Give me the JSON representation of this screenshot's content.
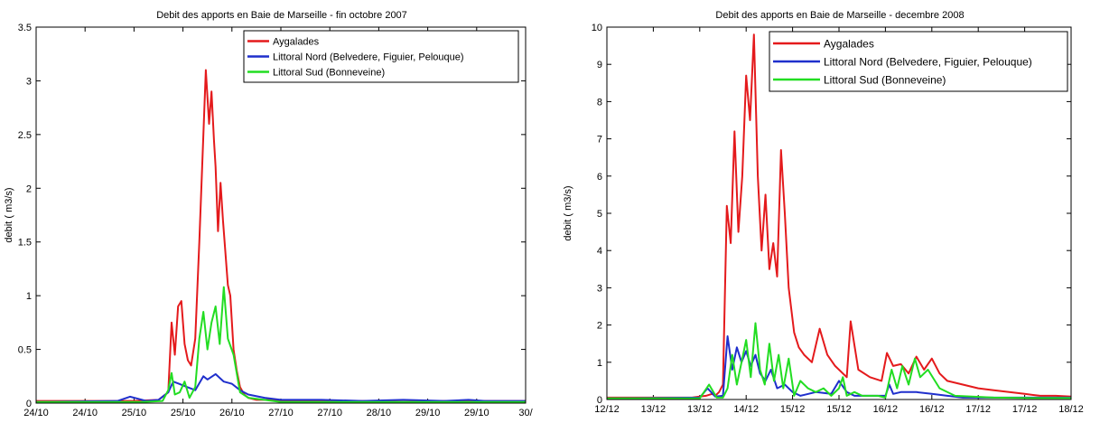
{
  "charts": [
    {
      "id": "left",
      "chart_data": {
        "type": "line",
        "title": "Debit des apports en Baie de Marseille - fin octobre 2007",
        "xlabel": "",
        "ylabel": "debit ( m3/s)",
        "xlim": [
          0,
          6
        ],
        "ylim": [
          0,
          3.5
        ],
        "yticks": [
          0,
          0.5,
          1,
          1.5,
          2,
          2.5,
          3,
          3.5
        ],
        "ytick_labels": [
          "0",
          "0.5",
          "1",
          "1.5",
          "2",
          "2.5",
          "3",
          "3.5"
        ],
        "xticks": [
          0,
          0.6,
          1.2,
          1.8,
          2.4,
          3.0,
          3.6,
          4.2,
          4.8,
          5.4,
          6.0
        ],
        "xtick_labels": [
          "24/10",
          "24/10",
          "25/10",
          "25/10",
          "26/10",
          "27/10",
          "27/10",
          "28/10",
          "29/10",
          "29/10",
          "30/"
        ],
        "legend_position": "top-right",
        "series": [
          {
            "name": "Aygalades",
            "color": "#e41a1c",
            "x": [
              0,
              1.2,
              1.5,
              1.62,
              1.66,
              1.7,
              1.74,
              1.78,
              1.82,
              1.86,
              1.9,
              1.95,
              2.0,
              2.05,
              2.08,
              2.12,
              2.15,
              2.18,
              2.2,
              2.23,
              2.26,
              2.29,
              2.32,
              2.35,
              2.38,
              2.42,
              2.46,
              2.5,
              2.55,
              2.6,
              2.7,
              2.85,
              3.0,
              3.5,
              4.0,
              4.5,
              5.0,
              5.5,
              6.0
            ],
            "y": [
              0.02,
              0.02,
              0.03,
              0.1,
              0.75,
              0.45,
              0.9,
              0.95,
              0.55,
              0.4,
              0.35,
              0.6,
              1.5,
              2.5,
              3.1,
              2.6,
              2.9,
              2.45,
              2.2,
              1.6,
              2.05,
              1.7,
              1.4,
              1.1,
              1.0,
              0.5,
              0.3,
              0.15,
              0.08,
              0.05,
              0.03,
              0.03,
              0.02,
              0.02,
              0.02,
              0.01,
              0.02,
              0.02,
              0.02
            ]
          },
          {
            "name": "Littoral Nord (Belvedere, Figuier, Pelouque)",
            "color": "#1f2fcc",
            "x": [
              0,
              1.0,
              1.15,
              1.25,
              1.35,
              1.5,
              1.62,
              1.68,
              1.75,
              1.85,
              1.95,
              2.05,
              2.1,
              2.2,
              2.3,
              2.4,
              2.5,
              2.6,
              2.8,
              3.0,
              3.5,
              4.0,
              4.5,
              5.0,
              5.3,
              5.5,
              6.0
            ],
            "y": [
              0.01,
              0.02,
              0.06,
              0.04,
              0.02,
              0.03,
              0.1,
              0.2,
              0.18,
              0.15,
              0.12,
              0.25,
              0.22,
              0.27,
              0.2,
              0.18,
              0.12,
              0.08,
              0.05,
              0.03,
              0.03,
              0.02,
              0.03,
              0.02,
              0.03,
              0.02,
              0.02
            ]
          },
          {
            "name": "Littoral Sud (Bonneveine)",
            "color": "#22dd22",
            "x": [
              0,
              1.3,
              1.55,
              1.62,
              1.66,
              1.7,
              1.76,
              1.82,
              1.88,
              1.95,
              2.0,
              2.05,
              2.1,
              2.15,
              2.2,
              2.25,
              2.3,
              2.35,
              2.42,
              2.5,
              2.6,
              2.8,
              3.0,
              3.5,
              4.0,
              5.0,
              6.0
            ],
            "y": [
              0.01,
              0.01,
              0.02,
              0.12,
              0.28,
              0.08,
              0.1,
              0.2,
              0.05,
              0.15,
              0.6,
              0.85,
              0.5,
              0.75,
              0.9,
              0.55,
              1.08,
              0.6,
              0.45,
              0.1,
              0.05,
              0.03,
              0.01,
              0.01,
              0.01,
              0.01,
              0.01
            ]
          }
        ]
      }
    },
    {
      "id": "right",
      "chart_data": {
        "type": "line",
        "title": "Debit des apports en Baie de Marseille - decembre 2008",
        "xlabel": "",
        "ylabel": "debit ( m3/s)",
        "xlim": [
          0,
          6
        ],
        "ylim": [
          0,
          10
        ],
        "yticks": [
          0,
          1,
          2,
          3,
          4,
          5,
          6,
          7,
          8,
          9,
          10
        ],
        "ytick_labels": [
          "0",
          "1",
          "2",
          "3",
          "4",
          "5",
          "6",
          "7",
          "8",
          "9",
          "10"
        ],
        "xticks": [
          0,
          0.5,
          1,
          1.5,
          2,
          2.5,
          3,
          3.5,
          4,
          4.5,
          5,
          5.5,
          6
        ],
        "xtick_labels": [
          "12/12",
          "13/12",
          "13/12",
          "14/12",
          "15/12",
          "15/12",
          "16/12",
          "16/12",
          "17/12",
          "17/12",
          "18/12"
        ],
        "xtick_positions": [
          0,
          0.6,
          1.2,
          1.8,
          2.4,
          3.0,
          3.6,
          4.2,
          4.8,
          5.4,
          6.0
        ],
        "legend_position": "top-right",
        "series": [
          {
            "name": "Aygalades",
            "color": "#e41a1c",
            "x": [
              0,
              1.1,
              1.28,
              1.36,
              1.4,
              1.45,
              1.5,
              1.55,
              1.6,
              1.65,
              1.7,
              1.75,
              1.8,
              1.85,
              1.9,
              1.95,
              2.0,
              2.05,
              2.1,
              2.15,
              2.2,
              2.25,
              2.3,
              2.35,
              2.42,
              2.48,
              2.55,
              2.65,
              2.75,
              2.85,
              2.95,
              3.05,
              3.1,
              3.15,
              3.25,
              3.4,
              3.55,
              3.62,
              3.7,
              3.8,
              3.9,
              4.0,
              4.1,
              4.2,
              4.3,
              4.4,
              4.6,
              4.8,
              5.0,
              5.2,
              5.4,
              5.6,
              5.8,
              6.0
            ],
            "y": [
              0.05,
              0.05,
              0.1,
              0.15,
              0.1,
              0.2,
              0.4,
              5.2,
              4.2,
              7.2,
              4.5,
              6.0,
              8.7,
              7.5,
              9.8,
              6.0,
              4.0,
              5.5,
              3.5,
              4.2,
              3.3,
              6.7,
              5.0,
              3.0,
              1.8,
              1.4,
              1.2,
              1.0,
              1.9,
              1.2,
              0.9,
              0.7,
              0.6,
              2.1,
              0.8,
              0.6,
              0.5,
              1.25,
              0.9,
              0.95,
              0.7,
              1.15,
              0.8,
              1.1,
              0.7,
              0.5,
              0.4,
              0.3,
              0.25,
              0.2,
              0.15,
              0.1,
              0.1,
              0.08
            ]
          },
          {
            "name": "Littoral Nord (Belvedere, Figuier, Pelouque)",
            "color": "#1f2fcc",
            "x": [
              0,
              1.2,
              1.3,
              1.4,
              1.5,
              1.56,
              1.62,
              1.68,
              1.74,
              1.8,
              1.86,
              1.92,
              1.98,
              2.05,
              2.12,
              2.2,
              2.3,
              2.4,
              2.5,
              2.7,
              2.9,
              3.0,
              3.1,
              3.2,
              3.4,
              3.6,
              3.65,
              3.7,
              3.8,
              4.0,
              4.2,
              4.4,
              4.6,
              5.0,
              5.5,
              6.0
            ],
            "y": [
              0.03,
              0.05,
              0.3,
              0.08,
              0.1,
              1.7,
              0.8,
              1.4,
              1.0,
              1.3,
              0.9,
              1.2,
              0.7,
              0.5,
              0.8,
              0.3,
              0.4,
              0.2,
              0.1,
              0.2,
              0.15,
              0.5,
              0.2,
              0.1,
              0.1,
              0.1,
              0.4,
              0.15,
              0.2,
              0.2,
              0.15,
              0.1,
              0.05,
              0.05,
              0.05,
              0.05
            ]
          },
          {
            "name": "Littoral Sud (Bonneveine)",
            "color": "#22dd22",
            "x": [
              0,
              1.2,
              1.32,
              1.42,
              1.5,
              1.56,
              1.62,
              1.68,
              1.74,
              1.8,
              1.86,
              1.92,
              1.98,
              2.04,
              2.1,
              2.16,
              2.22,
              2.28,
              2.35,
              2.42,
              2.5,
              2.6,
              2.7,
              2.8,
              2.9,
              3.0,
              3.05,
              3.1,
              3.2,
              3.3,
              3.5,
              3.6,
              3.68,
              3.75,
              3.82,
              3.9,
              3.98,
              4.05,
              4.15,
              4.3,
              4.5,
              5.0,
              5.5,
              6.0
            ],
            "y": [
              0.03,
              0.03,
              0.4,
              0.05,
              0.05,
              0.3,
              1.2,
              0.4,
              1.0,
              1.6,
              0.6,
              2.05,
              0.8,
              0.4,
              1.5,
              0.5,
              1.2,
              0.3,
              1.1,
              0.1,
              0.5,
              0.3,
              0.2,
              0.3,
              0.1,
              0.3,
              0.6,
              0.1,
              0.2,
              0.1,
              0.1,
              0.05,
              0.8,
              0.3,
              0.9,
              0.4,
              1.1,
              0.6,
              0.8,
              0.3,
              0.1,
              0.05,
              0.04,
              0.04
            ]
          }
        ]
      }
    }
  ]
}
